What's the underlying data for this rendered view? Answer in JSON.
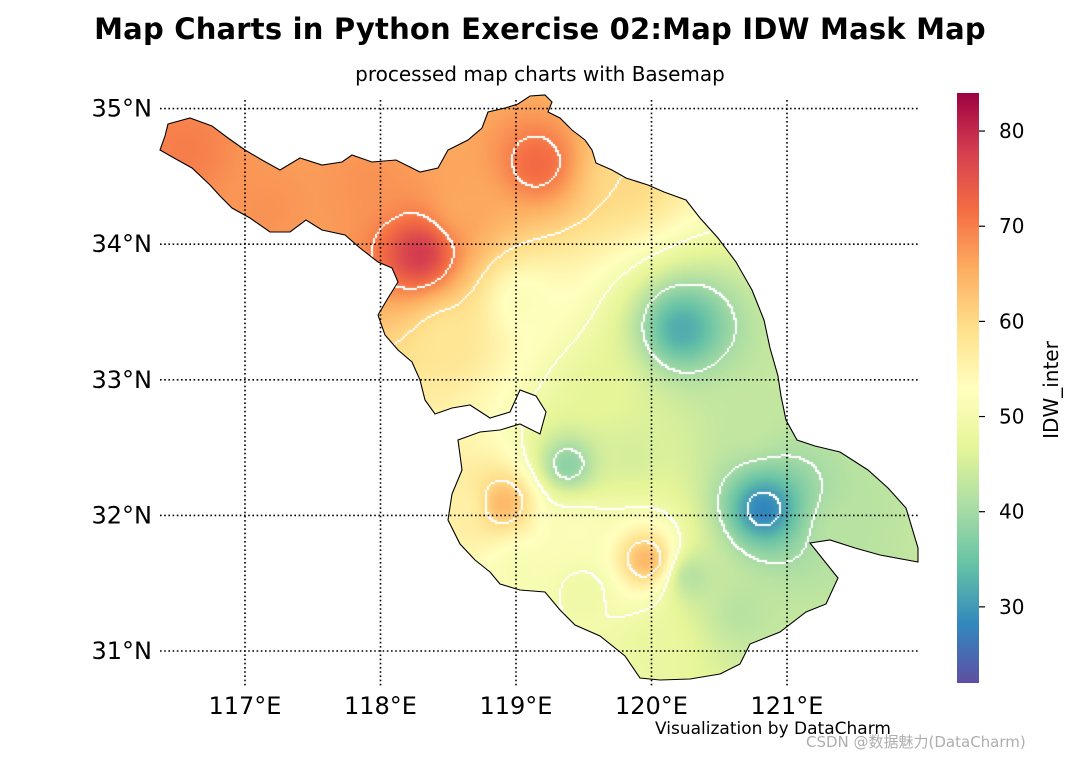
{
  "title": "Map Charts in Python Exercise 02:Map IDW Mask Map",
  "subtitle": "processed map charts with Basemap",
  "credit": "Visualization by DataCharm",
  "watermark": "CSDN @数据魅力(DataCharm)",
  "map": {
    "lon_range": [
      116.3,
      121.95
    ],
    "lat_range": [
      30.75,
      35.1
    ],
    "meridians": [
      117,
      118,
      119,
      120,
      121
    ],
    "meridian_labels": [
      "117°E",
      "118°E",
      "119°E",
      "120°E",
      "121°E"
    ],
    "parallels": [
      31,
      32,
      33,
      34,
      35
    ],
    "parallel_labels": [
      "31°N",
      "32°N",
      "33°N",
      "34°N",
      "35°N"
    ],
    "grid_style": "dotted",
    "colormap": "Spectral_r",
    "contour_color": "#ffffff"
  },
  "colorbar": {
    "label": "IDW_inter",
    "vmin": 22,
    "vmax": 84,
    "ticks": [
      30,
      40,
      50,
      60,
      70,
      80
    ],
    "tick_labels": [
      "30",
      "40",
      "50",
      "60",
      "70",
      "80"
    ]
  },
  "chart_data": {
    "type": "heatmap",
    "title": "Map Charts in Python Exercise 02:Map IDW Mask Map",
    "subtitle": "processed map charts with Basemap",
    "xlabel": "",
    "ylabel": "",
    "value_label": "IDW_inter",
    "value_range": [
      22,
      84
    ],
    "contour_interval": 10,
    "stations": [
      {
        "lon": 118.28,
        "lat": 33.94,
        "value": 78
      },
      {
        "lon": 119.15,
        "lat": 34.6,
        "value": 72
      },
      {
        "lon": 117.15,
        "lat": 34.25,
        "value": 68
      },
      {
        "lon": 116.55,
        "lat": 34.7,
        "value": 70
      },
      {
        "lon": 117.9,
        "lat": 34.45,
        "value": 68
      },
      {
        "lon": 118.6,
        "lat": 34.3,
        "value": 66
      },
      {
        "lon": 119.8,
        "lat": 34.5,
        "value": 60
      },
      {
        "lon": 118.5,
        "lat": 33.3,
        "value": 58
      },
      {
        "lon": 119.05,
        "lat": 33.58,
        "value": 52
      },
      {
        "lon": 120.22,
        "lat": 33.38,
        "value": 32
      },
      {
        "lon": 119.6,
        "lat": 32.9,
        "value": 47
      },
      {
        "lon": 120.7,
        "lat": 32.7,
        "value": 43
      },
      {
        "lon": 120.82,
        "lat": 32.05,
        "value": 28
      },
      {
        "lon": 121.4,
        "lat": 31.9,
        "value": 42
      },
      {
        "lon": 119.38,
        "lat": 32.38,
        "value": 38
      },
      {
        "lon": 119.85,
        "lat": 32.45,
        "value": 45
      },
      {
        "lon": 118.9,
        "lat": 32.1,
        "value": 64
      },
      {
        "lon": 118.6,
        "lat": 32.08,
        "value": 56
      },
      {
        "lon": 119.45,
        "lat": 31.9,
        "value": 52
      },
      {
        "lon": 119.95,
        "lat": 31.68,
        "value": 64
      },
      {
        "lon": 120.3,
        "lat": 31.55,
        "value": 42
      },
      {
        "lon": 120.65,
        "lat": 31.3,
        "value": 42
      },
      {
        "lon": 119.5,
        "lat": 31.45,
        "value": 49
      },
      {
        "lon": 120.0,
        "lat": 31.05,
        "value": 48
      },
      {
        "lon": 119.0,
        "lat": 31.6,
        "value": 51
      }
    ]
  }
}
